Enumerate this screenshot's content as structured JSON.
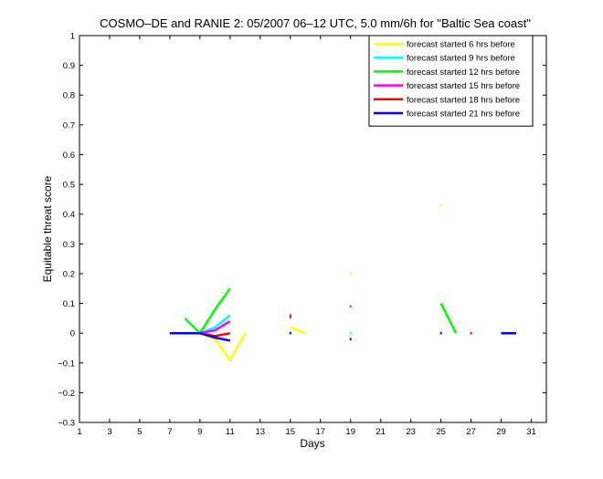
{
  "chart_data": {
    "type": "line",
    "title": "COSMO–DE and RANIE 2: 05/2007 06–12 UTC, 5.0 mm/6h for \"Baltic Sea coast\"",
    "xlabel": "Days",
    "ylabel": "Equitable threat score",
    "xlim": [
      1,
      32
    ],
    "ylim": [
      -0.3,
      1
    ],
    "x_ticks": [
      1,
      3,
      5,
      7,
      9,
      11,
      13,
      15,
      17,
      19,
      21,
      23,
      25,
      27,
      29,
      31
    ],
    "y_ticks": [
      -0.3,
      -0.2,
      -0.1,
      0,
      0.1,
      0.2,
      0.3,
      0.4,
      0.5,
      0.6,
      0.7,
      0.8,
      0.9,
      1
    ],
    "y_tick_labels": [
      "−0.3",
      "−0.2",
      "−0.1",
      "0",
      "0.1",
      "0.2",
      "0.3",
      "0.4",
      "0.5",
      "0.6",
      "0.7",
      "0.8",
      "0.9",
      "1"
    ],
    "grid": false,
    "legend_position": "top-right",
    "series": [
      {
        "name": "forecast started 6 hrs before",
        "color": "#ffff00",
        "segments": [
          [
            [
              7,
              0
            ],
            [
              8,
              0
            ],
            [
              9,
              0
            ],
            [
              10,
              -0.02
            ],
            [
              11,
              -0.09
            ],
            [
              12,
              0
            ]
          ],
          [
            [
              15,
              0.02
            ],
            [
              16,
              0
            ]
          ],
          [
            [
              19,
              0.2
            ]
          ],
          [
            [
              25,
              0.43
            ]
          ]
        ]
      },
      {
        "name": "forecast started 9 hrs before",
        "color": "#00ffff",
        "segments": [
          [
            [
              7,
              0
            ],
            [
              8,
              0
            ],
            [
              9,
              0
            ],
            [
              10,
              0.02
            ],
            [
              11,
              0.06
            ]
          ],
          [
            [
              15,
              0.05
            ]
          ],
          [
            [
              19,
              0
            ]
          ]
        ]
      },
      {
        "name": "forecast started 12 hrs before",
        "color": "#00ff00",
        "segments": [
          [
            [
              8,
              0.05
            ],
            [
              9,
              0
            ],
            [
              10,
              0.08
            ],
            [
              11,
              0.15
            ]
          ],
          [
            [
              25,
              0.1
            ],
            [
              26,
              0
            ]
          ]
        ]
      },
      {
        "name": "forecast started 15 hrs before",
        "color": "#ff00ff",
        "segments": [
          [
            [
              7,
              0
            ],
            [
              8,
              0
            ],
            [
              9,
              0
            ],
            [
              10,
              0.01
            ],
            [
              11,
              0.04
            ]
          ],
          [
            [
              15,
              0.06
            ]
          ],
          [
            [
              19,
              0.09
            ]
          ]
        ]
      },
      {
        "name": "forecast started 18 hrs before",
        "color": "#ff0000",
        "segments": [
          [
            [
              7,
              0
            ],
            [
              8,
              0
            ],
            [
              9,
              0
            ],
            [
              10,
              -0.01
            ],
            [
              11,
              0
            ]
          ],
          [
            [
              15,
              0.055
            ]
          ],
          [
            [
              27,
              0
            ]
          ]
        ]
      },
      {
        "name": "forecast started 21 hrs before",
        "color": "#0000ff",
        "segments": [
          [
            [
              7,
              0
            ],
            [
              8,
              0
            ],
            [
              9,
              0
            ],
            [
              10,
              -0.015
            ],
            [
              11,
              -0.025
            ]
          ],
          [
            [
              15,
              0
            ]
          ],
          [
            [
              19,
              -0.02
            ]
          ],
          [
            [
              25,
              0
            ]
          ],
          [
            [
              29,
              0
            ],
            [
              30,
              0
            ]
          ]
        ]
      }
    ]
  }
}
